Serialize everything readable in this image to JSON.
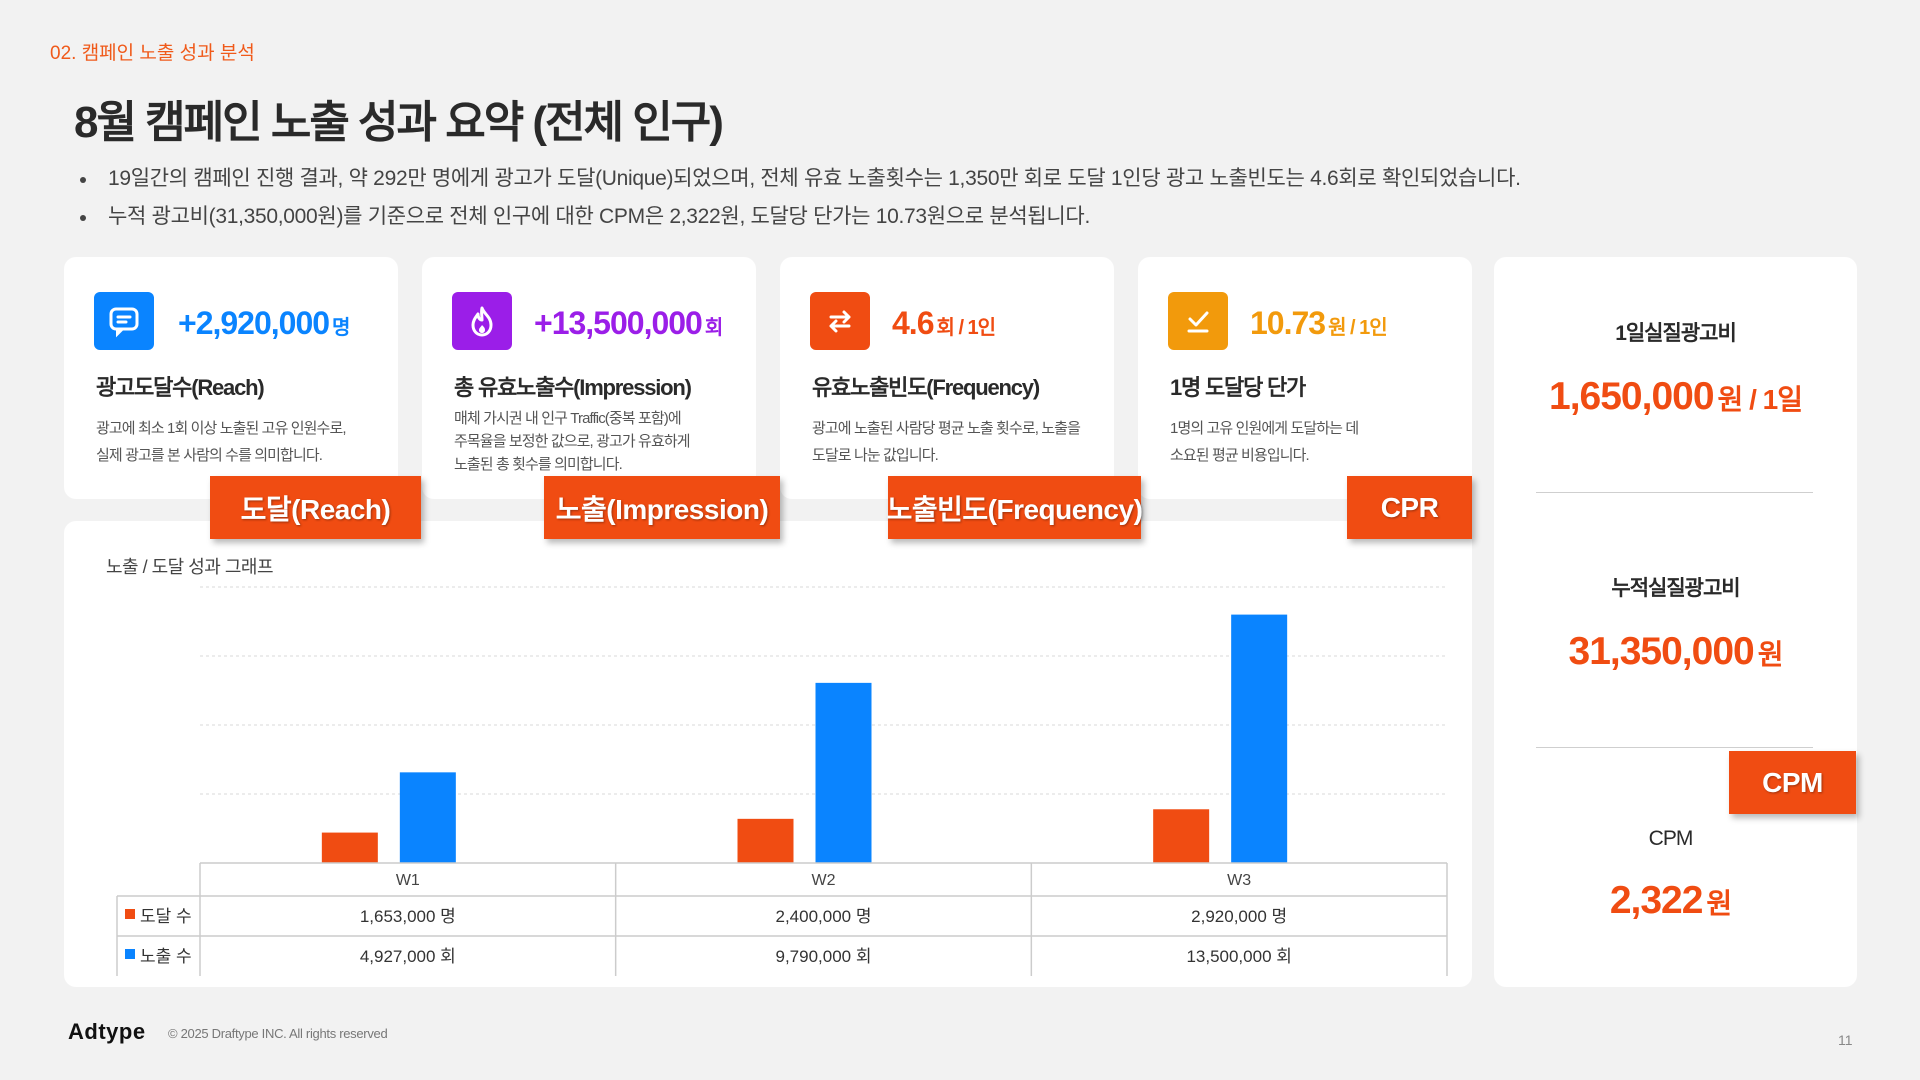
{
  "section_label": "02.  캠페인 노출 성과 분석",
  "title": "8월 캠페인 노출 성과 요약 (전체 인구)",
  "bullets": [
    "19일간의 캠페인 진행 결과, 약 292만 명에게 광고가 도달(Unique)되었으며, 전체 유효 노출횟수는 1,350만 회로 도달 1인당 광고 노출빈도는 4.6회로 확인되었습니다.",
    "누적 광고비(31,350,000원)를 기준으로 전체 인구에 대한 CPM은 2,322원, 도달당 단가는 10.73원으로 분석됩니다."
  ],
  "cards": [
    {
      "icon": "chat-icon",
      "color": "#0a84ff",
      "value": "+2,920,000",
      "unit": "명",
      "title": "광고도달수(Reach)",
      "desc": [
        "광고에 최소 1회 이상 노출된 고유 인원수로,",
        "실제 광고를 본 사람의 수를 의미합니다."
      ]
    },
    {
      "icon": "fire-icon",
      "color": "#9b1ee8",
      "value": "+13,500,000",
      "unit": "회",
      "title": "총 유효노출수(Impression)",
      "desc": [
        "매체 가시권 내 인구 Traffic(중복 포함)에",
        "주목율을 보정한 값으로, 광고가 유효하게",
        "노출된 총 횟수를 의미합니다."
      ]
    },
    {
      "icon": "swap-arrows-icon",
      "color": "#f04c12",
      "value": "4.6",
      "unit": "회 / 1인",
      "title": "유효노출빈도(Frequency)",
      "desc": [
        "광고에 노출된 사람당 평균 노출 횟수로, 노출을",
        "도달로 나눈 값입니다."
      ]
    },
    {
      "icon": "check-icon",
      "color": "#f29a0c",
      "value": "10.73",
      "unit": "원 / 1인",
      "title": "1명 도달당 단가",
      "desc": [
        "1명의 고유 인원에게 도달하는 데",
        "소요된 평균 비용입니다."
      ]
    }
  ],
  "tags": [
    "도달(Reach)",
    "노출(Impression)",
    "노출빈도(Frequency)",
    "CPR",
    "CPM"
  ],
  "chart_title": "노출 / 도달 성과 그래프",
  "table_rows": {
    "reach": {
      "label": "도달 수",
      "cells": [
        "1,653,000 명",
        "2,400,000 명",
        "2,920,000 명"
      ]
    },
    "impression": {
      "label": "노출 수",
      "cells": [
        "4,927,000 회",
        "9,790,000 회",
        "13,500,000 회"
      ]
    }
  },
  "chart_data": {
    "type": "bar",
    "title": "노출 / 도달 성과 그래프",
    "categories": [
      "W1",
      "W2",
      "W3"
    ],
    "series": [
      {
        "name": "도달 수",
        "color": "#f04c12",
        "values": [
          1653000,
          2400000,
          2920000
        ]
      },
      {
        "name": "노출 수",
        "color": "#0a84ff",
        "values": [
          4927000,
          9790000,
          13500000
        ]
      }
    ],
    "ylim": [
      0,
      15000000
    ],
    "grid": true,
    "legend": "in-table-left"
  },
  "side": {
    "daily_label": "1일실질광고비",
    "daily_value": "1,650,000",
    "daily_unit": "원 / 1일",
    "total_label": "누적실질광고비",
    "total_value": "31,350,000",
    "total_unit": "원",
    "cpm_label": "CPM",
    "cpm_value": "2,322",
    "cpm_unit": "원"
  },
  "footer": {
    "logo": "Adtype",
    "copyright": "© 2025 Draftype INC. All rights reserved",
    "page": "11"
  }
}
